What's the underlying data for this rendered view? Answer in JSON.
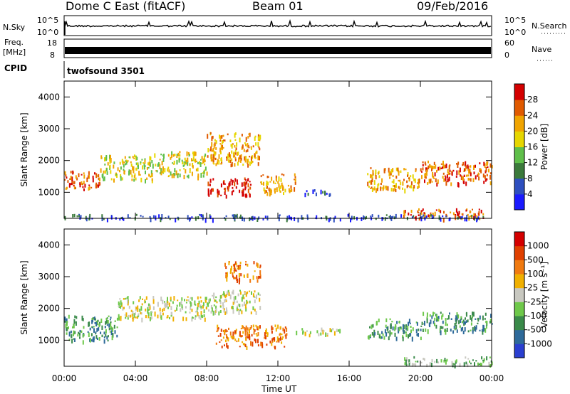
{
  "header": {
    "station": "Dome C East (fitACF)",
    "beam": "Beam 01",
    "date": "09/Feb/2016"
  },
  "status": {
    "nsky_label": "N.Sky",
    "nsky_top": "10^5",
    "nsky_bottom": "10^0",
    "nsearch_label": "N.Search",
    "nsearch_top": "10^5",
    "nsearch_bottom": "10^0",
    "freq_label": "Freq.",
    "freq_unit": "[MHz]",
    "freq_top": "18",
    "freq_bottom": "8",
    "nave_label": "Nave",
    "nave_top": "60",
    "nave_bottom": "0",
    "cpid_label": "CPID",
    "cpid_value": "twofsound 3501"
  },
  "chart_data": [
    {
      "type": "heatmap",
      "name": "power",
      "xlabel": "Time UT",
      "ylabel": "Slant Range [km]",
      "xlim": [
        0,
        24
      ],
      "ylim": [
        180,
        4500
      ],
      "x_ticks": [
        "00:00",
        "04:00",
        "08:00",
        "12:00",
        "16:00",
        "20:00",
        "00:00"
      ],
      "y_ticks": [
        "1000",
        "2000",
        "3000",
        "4000"
      ],
      "colorbar": {
        "label": "Power [dB]",
        "ticks": [
          "4",
          "8",
          "12",
          "16",
          "20",
          "24",
          "28"
        ],
        "colors": [
          "#1a1aff",
          "#2e4fbf",
          "#3b7a3b",
          "#5fbf4a",
          "#e6d600",
          "#f0a400",
          "#e05a00",
          "#d40000"
        ]
      },
      "regions": [
        {
          "x": [
            0.0,
            2.0
          ],
          "y": [
            1100,
            1700
          ],
          "level": 6
        },
        {
          "x": [
            2.0,
            5.0
          ],
          "y": [
            1400,
            2200
          ],
          "level": 4
        },
        {
          "x": [
            5.0,
            8.0
          ],
          "y": [
            1500,
            2300
          ],
          "level": 4
        },
        {
          "x": [
            8.0,
            11.0
          ],
          "y": [
            1900,
            2900
          ],
          "level": 5
        },
        {
          "x": [
            8.0,
            10.5
          ],
          "y": [
            900,
            1500
          ],
          "level": 7
        },
        {
          "x": [
            11.0,
            13.0
          ],
          "y": [
            1000,
            1600
          ],
          "level": 5
        },
        {
          "x": [
            13.0,
            15.0
          ],
          "y": [
            950,
            1100
          ],
          "level": 1
        },
        {
          "x": [
            17.0,
            20.0
          ],
          "y": [
            1100,
            1800
          ],
          "level": 5
        },
        {
          "x": [
            20.0,
            24.0
          ],
          "y": [
            1300,
            2000
          ],
          "level": 6
        },
        {
          "x": [
            19.0,
            23.5
          ],
          "y": [
            200,
            500
          ],
          "level": 6
        },
        {
          "x": [
            0.0,
            24.0
          ],
          "y": [
            180,
            320
          ],
          "level": 1
        }
      ]
    },
    {
      "type": "heatmap",
      "name": "velocity",
      "xlabel": "Time UT",
      "ylabel": "Slant Range [km]",
      "xlim": [
        0,
        24
      ],
      "ylim": [
        180,
        4500
      ],
      "x_ticks": [
        "00:00",
        "04:00",
        "08:00",
        "12:00",
        "16:00",
        "20:00",
        "00:00"
      ],
      "y_ticks": [
        "1000",
        "2000",
        "3000",
        "4000"
      ],
      "colorbar": {
        "label": "Velocity [m s⁻¹]",
        "ticks": [
          "1000",
          "500",
          "100",
          "25",
          "-25",
          "-100",
          "-500",
          "-1000"
        ],
        "colors": [
          "#2a3fd0",
          "#2e6a9a",
          "#3a8a4a",
          "#6ec84a",
          "#c8c8c0",
          "#f0b000",
          "#f07a10",
          "#e04000",
          "#d40000"
        ]
      },
      "regions": [
        {
          "x": [
            0.0,
            3.0
          ],
          "y": [
            1000,
            1800
          ],
          "level": 2
        },
        {
          "x": [
            3.0,
            8.0
          ],
          "y": [
            1700,
            2400
          ],
          "level": 4
        },
        {
          "x": [
            8.0,
            11.0
          ],
          "y": [
            1900,
            2600
          ],
          "level": 4
        },
        {
          "x": [
            8.5,
            12.5
          ],
          "y": [
            800,
            1500
          ],
          "level": 6
        },
        {
          "x": [
            13.0,
            15.5
          ],
          "y": [
            1200,
            1400
          ],
          "level": 4
        },
        {
          "x": [
            17.0,
            20.0
          ],
          "y": [
            1100,
            1700
          ],
          "level": 2
        },
        {
          "x": [
            20.0,
            24.0
          ],
          "y": [
            1300,
            1900
          ],
          "level": 2
        },
        {
          "x": [
            19.0,
            24.0
          ],
          "y": [
            250,
            500
          ],
          "level": 3
        },
        {
          "x": [
            9.0,
            11.0
          ],
          "y": [
            2900,
            3500
          ],
          "level": 6
        }
      ]
    }
  ]
}
